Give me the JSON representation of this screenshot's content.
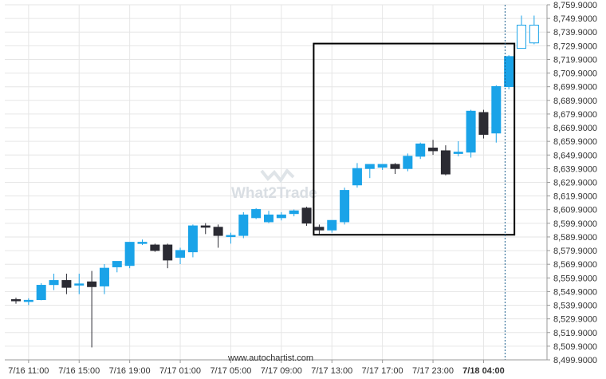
{
  "chart_data": {
    "type": "candlestick",
    "y_axis": {
      "ticks": [
        "8,759.9000",
        "8,749.9000",
        "8,739.9000",
        "8,729.9000",
        "8,719.9000",
        "8,709.9000",
        "8,699.9000",
        "8,689.9000",
        "8,679.9000",
        "8,669.9000",
        "8,659.9000",
        "8,649.9000",
        "8,639.9000",
        "8,629.9000",
        "8,619.9000",
        "8,609.9000",
        "8,599.9000",
        "8,589.9000",
        "8,579.9000",
        "8,569.9000",
        "8,559.9000",
        "8,549.9000",
        "8,539.9000",
        "8,529.9000",
        "8,519.9000",
        "8,509.9000",
        "8,499.9000"
      ],
      "ylim": [
        8499.9,
        8759.9
      ],
      "position": "right"
    },
    "x_axis": {
      "ticks": [
        {
          "label": "7/16 11:00",
          "index": 1
        },
        {
          "label": "7/16 15:00",
          "index": 5
        },
        {
          "label": "7/16 19:00",
          "index": 9
        },
        {
          "label": "7/17 01:00",
          "index": 13
        },
        {
          "label": "7/17 05:00",
          "index": 17
        },
        {
          "label": "7/17 09:00",
          "index": 21
        },
        {
          "label": "7/17 13:00",
          "index": 25
        },
        {
          "label": "7/17 17:00",
          "index": 29
        },
        {
          "label": "7/17 23:00",
          "index": 33
        },
        {
          "label": "7/18 04:00",
          "index": 37,
          "bold": true
        }
      ]
    },
    "colors": {
      "up": "#1aa3e8",
      "down": "#2b2b33",
      "grid": "#e6e6e6",
      "box": "#000000",
      "now_line": "#1a5e8c"
    },
    "candles": [
      {
        "o": 8544.0,
        "h": 8545.5,
        "l": 8541.0,
        "c": 8543.5
      },
      {
        "o": 8543.5,
        "h": 8545.0,
        "l": 8540.0,
        "c": 8543.5
      },
      {
        "o": 8544.0,
        "h": 8556.0,
        "l": 8543.5,
        "c": 8554.5
      },
      {
        "o": 8555.0,
        "h": 8563.0,
        "l": 8551.0,
        "c": 8558.0
      },
      {
        "o": 8558.0,
        "h": 8563.0,
        "l": 8548.0,
        "c": 8553.0
      },
      {
        "o": 8555.0,
        "h": 8563.0,
        "l": 8548.0,
        "c": 8555.5
      },
      {
        "o": 8557.0,
        "h": 8565.0,
        "l": 8509.0,
        "c": 8553.5
      },
      {
        "o": 8554.0,
        "h": 8570.0,
        "l": 8548.0,
        "c": 8567.0
      },
      {
        "o": 8568.0,
        "h": 8572.0,
        "l": 8564.0,
        "c": 8572.0
      },
      {
        "o": 8569.0,
        "h": 8586.0,
        "l": 8567.0,
        "c": 8586.0
      },
      {
        "o": 8586.0,
        "h": 8588.0,
        "l": 8584.0,
        "c": 8586.0
      },
      {
        "o": 8584.0,
        "h": 8585.0,
        "l": 8579.0,
        "c": 8580.0
      },
      {
        "o": 8584.0,
        "h": 8585.0,
        "l": 8567.0,
        "c": 8573.0
      },
      {
        "o": 8575.0,
        "h": 8582.0,
        "l": 8570.0,
        "c": 8580.0
      },
      {
        "o": 8579.0,
        "h": 8599.0,
        "l": 8575.0,
        "c": 8598.0
      },
      {
        "o": 8598.0,
        "h": 8600.0,
        "l": 8592.0,
        "c": 8597.0
      },
      {
        "o": 8597.0,
        "h": 8599.0,
        "l": 8582.0,
        "c": 8591.0
      },
      {
        "o": 8591.0,
        "h": 8593.0,
        "l": 8585.0,
        "c": 8591.0
      },
      {
        "o": 8591.0,
        "h": 8608.0,
        "l": 8589.0,
        "c": 8606.0
      },
      {
        "o": 8604.0,
        "h": 8611.0,
        "l": 8603.0,
        "c": 8610.0
      },
      {
        "o": 8601.0,
        "h": 8609.0,
        "l": 8600.0,
        "c": 8606.0
      },
      {
        "o": 8604.0,
        "h": 8608.0,
        "l": 8602.0,
        "c": 8606.0
      },
      {
        "o": 8607.0,
        "h": 8610.0,
        "l": 8605.0,
        "c": 8609.0
      },
      {
        "o": 8611.0,
        "h": 8612.0,
        "l": 8598.0,
        "c": 8600.0
      },
      {
        "o": 8597.0,
        "h": 8599.0,
        "l": 8592.0,
        "c": 8595.0
      },
      {
        "o": 8595.0,
        "h": 8601.0,
        "l": 8593.0,
        "c": 8602.0
      },
      {
        "o": 8601.0,
        "h": 8626.0,
        "l": 8599.0,
        "c": 8624.0
      },
      {
        "o": 8628.0,
        "h": 8644.0,
        "l": 8626.0,
        "c": 8640.0
      },
      {
        "o": 8640.0,
        "h": 8642.0,
        "l": 8633.0,
        "c": 8643.0
      },
      {
        "o": 8641.0,
        "h": 8643.0,
        "l": 8639.0,
        "c": 8643.0
      },
      {
        "o": 8643.0,
        "h": 8644.0,
        "l": 8636.0,
        "c": 8640.0
      },
      {
        "o": 8640.0,
        "h": 8651.0,
        "l": 8638.0,
        "c": 8649.0
      },
      {
        "o": 8649.0,
        "h": 8659.0,
        "l": 8647.0,
        "c": 8658.0
      },
      {
        "o": 8655.0,
        "h": 8661.0,
        "l": 8650.0,
        "c": 8653.0
      },
      {
        "o": 8653.0,
        "h": 8657.0,
        "l": 8635.0,
        "c": 8636.0
      },
      {
        "o": 8651.0,
        "h": 8660.0,
        "l": 8649.0,
        "c": 8652.0
      },
      {
        "o": 8652.0,
        "h": 8683.0,
        "l": 8648.0,
        "c": 8682.0
      },
      {
        "o": 8681.0,
        "h": 8683.0,
        "l": 8662.0,
        "c": 8665.0
      },
      {
        "o": 8666.0,
        "h": 8701.0,
        "l": 8659.0,
        "c": 8700.0
      },
      {
        "o": 8700.0,
        "h": 8723.0,
        "l": 8698.0,
        "c": 8722.0
      },
      {
        "o": 8728.0,
        "h": 8752.0,
        "l": 8728.0,
        "c": 8745.0,
        "hollow": true
      },
      {
        "o": 8732.0,
        "h": 8752.0,
        "l": 8731.0,
        "c": 8745.0,
        "hollow": true
      }
    ],
    "highlight_box": {
      "from_index": 24,
      "to_index": 39,
      "top": 8731.5,
      "bottom": 8591.5
    },
    "now_line_index": 38.7
  },
  "watermark": {
    "text": "What2Trade",
    "brand_color": "#d9dee3"
  },
  "source": "www.autochartist.com"
}
